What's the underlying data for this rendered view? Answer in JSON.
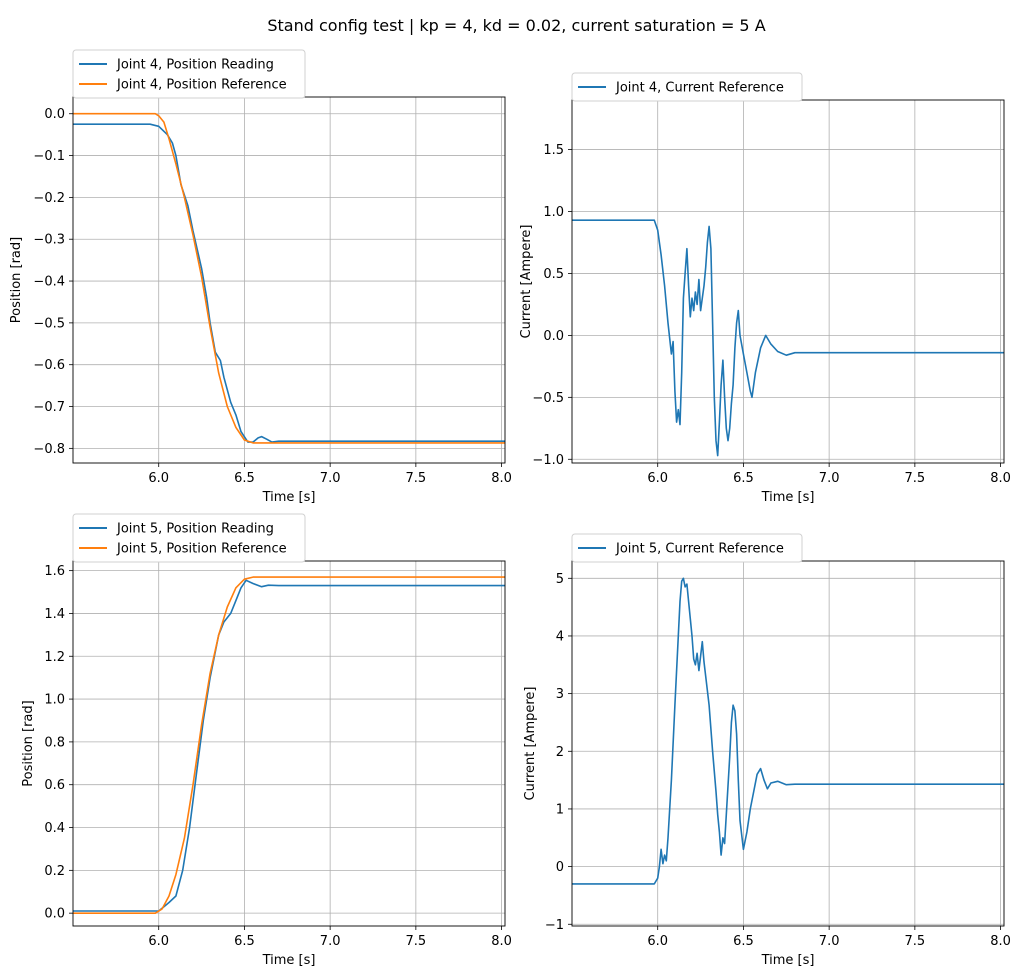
{
  "suptitle": "Stand config test | kp = 4, kd = 0.02, current saturation = 5 A",
  "colors": {
    "blue": "#1f77b4",
    "orange": "#ff7f0e",
    "grid": "#b0b0b0"
  },
  "chart_data": [
    {
      "type": "line",
      "xlabel": "Time [s]",
      "ylabel": "Position [rad]",
      "xlim": [
        5.5,
        8.02
      ],
      "ylim": [
        -0.835,
        0.04
      ],
      "xticks": [
        6.0,
        6.5,
        7.0,
        7.5,
        8.0
      ],
      "xtick_labels": [
        "6.0",
        "6.5",
        "7.0",
        "7.5",
        "8.0"
      ],
      "yticks": [
        0.0,
        -0.1,
        -0.2,
        -0.3,
        -0.4,
        -0.5,
        -0.6,
        -0.7,
        -0.8
      ],
      "ytick_labels": [
        "0.0",
        "−0.1",
        "−0.2",
        "−0.3",
        "−0.4",
        "−0.5",
        "−0.6",
        "−0.7",
        "−0.8"
      ],
      "grid": true,
      "legend_position": "above-left",
      "series": [
        {
          "name": "Joint 4, Position Reading",
          "color": "#1f77b4",
          "points": [
            [
              5.5,
              -0.025
            ],
            [
              5.95,
              -0.025
            ],
            [
              6.0,
              -0.03
            ],
            [
              6.05,
              -0.05
            ],
            [
              6.08,
              -0.07
            ],
            [
              6.1,
              -0.1
            ],
            [
              6.13,
              -0.17
            ],
            [
              6.17,
              -0.22
            ],
            [
              6.2,
              -0.28
            ],
            [
              6.25,
              -0.37
            ],
            [
              6.28,
              -0.44
            ],
            [
              6.3,
              -0.5
            ],
            [
              6.33,
              -0.57
            ],
            [
              6.36,
              -0.59
            ],
            [
              6.38,
              -0.63
            ],
            [
              6.42,
              -0.69
            ],
            [
              6.45,
              -0.72
            ],
            [
              6.48,
              -0.76
            ],
            [
              6.52,
              -0.785
            ],
            [
              6.55,
              -0.785
            ],
            [
              6.58,
              -0.775
            ],
            [
              6.6,
              -0.772
            ],
            [
              6.63,
              -0.778
            ],
            [
              6.66,
              -0.785
            ],
            [
              6.7,
              -0.783
            ],
            [
              8.02,
              -0.783
            ]
          ]
        },
        {
          "name": "Joint 4, Position Reference",
          "color": "#ff7f0e",
          "points": [
            [
              5.5,
              0.0
            ],
            [
              5.98,
              0.0
            ],
            [
              6.0,
              -0.005
            ],
            [
              6.03,
              -0.02
            ],
            [
              6.06,
              -0.06
            ],
            [
              6.1,
              -0.12
            ],
            [
              6.15,
              -0.2
            ],
            [
              6.2,
              -0.29
            ],
            [
              6.25,
              -0.39
            ],
            [
              6.3,
              -0.51
            ],
            [
              6.35,
              -0.62
            ],
            [
              6.4,
              -0.7
            ],
            [
              6.45,
              -0.75
            ],
            [
              6.5,
              -0.78
            ],
            [
              6.55,
              -0.787
            ],
            [
              6.6,
              -0.787
            ],
            [
              8.02,
              -0.787
            ]
          ]
        }
      ]
    },
    {
      "type": "line",
      "xlabel": "Time [s]",
      "ylabel": "Current [Ampere]",
      "xlim": [
        5.5,
        8.02
      ],
      "ylim": [
        -1.03,
        1.9
      ],
      "xticks": [
        6.0,
        6.5,
        7.0,
        7.5,
        8.0
      ],
      "xtick_labels": [
        "6.0",
        "6.5",
        "7.0",
        "7.5",
        "8.0"
      ],
      "yticks": [
        1.5,
        1.0,
        0.5,
        0.0,
        -0.5,
        -1.0
      ],
      "ytick_labels": [
        "1.5",
        "1.0",
        "0.5",
        "0.0",
        "−0.5",
        "−1.0"
      ],
      "grid": true,
      "legend_position": "above-left",
      "series": [
        {
          "name": "Joint 4, Current Reference",
          "color": "#1f77b4",
          "points": [
            [
              5.5,
              0.93
            ],
            [
              5.98,
              0.93
            ],
            [
              6.0,
              0.85
            ],
            [
              6.02,
              0.65
            ],
            [
              6.04,
              0.4
            ],
            [
              6.06,
              0.1
            ],
            [
              6.08,
              -0.15
            ],
            [
              6.09,
              -0.05
            ],
            [
              6.1,
              -0.45
            ],
            [
              6.11,
              -0.7
            ],
            [
              6.12,
              -0.6
            ],
            [
              6.13,
              -0.72
            ],
            [
              6.14,
              -0.3
            ],
            [
              6.15,
              0.3
            ],
            [
              6.16,
              0.5
            ],
            [
              6.17,
              0.7
            ],
            [
              6.18,
              0.4
            ],
            [
              6.19,
              0.15
            ],
            [
              6.2,
              0.3
            ],
            [
              6.21,
              0.2
            ],
            [
              6.22,
              0.35
            ],
            [
              6.23,
              0.25
            ],
            [
              6.24,
              0.45
            ],
            [
              6.25,
              0.2
            ],
            [
              6.26,
              0.3
            ],
            [
              6.27,
              0.4
            ],
            [
              6.28,
              0.55
            ],
            [
              6.29,
              0.75
            ],
            [
              6.3,
              0.88
            ],
            [
              6.31,
              0.7
            ],
            [
              6.32,
              0.1
            ],
            [
              6.33,
              -0.5
            ],
            [
              6.34,
              -0.85
            ],
            [
              6.35,
              -0.97
            ],
            [
              6.36,
              -0.7
            ],
            [
              6.37,
              -0.4
            ],
            [
              6.38,
              -0.2
            ],
            [
              6.39,
              -0.5
            ],
            [
              6.4,
              -0.75
            ],
            [
              6.41,
              -0.85
            ],
            [
              6.42,
              -0.75
            ],
            [
              6.43,
              -0.55
            ],
            [
              6.44,
              -0.4
            ],
            [
              6.45,
              -0.1
            ],
            [
              6.46,
              0.1
            ],
            [
              6.47,
              0.2
            ],
            [
              6.48,
              0.0
            ],
            [
              6.5,
              -0.15
            ],
            [
              6.52,
              -0.3
            ],
            [
              6.54,
              -0.45
            ],
            [
              6.55,
              -0.5
            ],
            [
              6.57,
              -0.3
            ],
            [
              6.6,
              -0.1
            ],
            [
              6.63,
              0.0
            ],
            [
              6.66,
              -0.07
            ],
            [
              6.7,
              -0.13
            ],
            [
              6.75,
              -0.16
            ],
            [
              6.8,
              -0.14
            ],
            [
              6.9,
              -0.14
            ],
            [
              7.0,
              -0.14
            ],
            [
              7.5,
              -0.14
            ],
            [
              8.02,
              -0.14
            ]
          ]
        }
      ]
    },
    {
      "type": "line",
      "xlabel": "Time [s]",
      "ylabel": "Position [rad]",
      "xlim": [
        5.5,
        8.02
      ],
      "ylim": [
        -0.06,
        1.645
      ],
      "xticks": [
        6.0,
        6.5,
        7.0,
        7.5,
        8.0
      ],
      "xtick_labels": [
        "6.0",
        "6.5",
        "7.0",
        "7.5",
        "8.0"
      ],
      "yticks": [
        0.0,
        0.2,
        0.4,
        0.6,
        0.8,
        1.0,
        1.2,
        1.4,
        1.6
      ],
      "ytick_labels": [
        "0.0",
        "0.2",
        "0.4",
        "0.6",
        "0.8",
        "1.0",
        "1.2",
        "1.4",
        "1.6"
      ],
      "grid": true,
      "legend_position": "above-left",
      "series": [
        {
          "name": "Joint 5, Position Reading",
          "color": "#1f77b4",
          "points": [
            [
              5.5,
              0.01
            ],
            [
              6.0,
              0.01
            ],
            [
              6.03,
              0.03
            ],
            [
              6.06,
              0.05
            ],
            [
              6.1,
              0.08
            ],
            [
              6.14,
              0.2
            ],
            [
              6.18,
              0.4
            ],
            [
              6.22,
              0.65
            ],
            [
              6.26,
              0.9
            ],
            [
              6.3,
              1.1
            ],
            [
              6.35,
              1.3
            ],
            [
              6.38,
              1.36
            ],
            [
              6.42,
              1.4
            ],
            [
              6.45,
              1.46
            ],
            [
              6.48,
              1.52
            ],
            [
              6.51,
              1.555
            ],
            [
              6.55,
              1.54
            ],
            [
              6.6,
              1.525
            ],
            [
              6.64,
              1.532
            ],
            [
              6.7,
              1.53
            ],
            [
              8.02,
              1.53
            ]
          ]
        },
        {
          "name": "Joint 5, Position Reference",
          "color": "#ff7f0e",
          "points": [
            [
              5.5,
              0.0
            ],
            [
              5.98,
              0.0
            ],
            [
              6.02,
              0.02
            ],
            [
              6.06,
              0.08
            ],
            [
              6.1,
              0.18
            ],
            [
              6.15,
              0.35
            ],
            [
              6.2,
              0.6
            ],
            [
              6.25,
              0.88
            ],
            [
              6.3,
              1.12
            ],
            [
              6.35,
              1.3
            ],
            [
              6.4,
              1.43
            ],
            [
              6.45,
              1.52
            ],
            [
              6.5,
              1.56
            ],
            [
              6.55,
              1.57
            ],
            [
              8.02,
              1.57
            ]
          ]
        }
      ]
    },
    {
      "type": "line",
      "xlabel": "Time [s]",
      "ylabel": "Current [Ampere]",
      "xlim": [
        5.5,
        8.02
      ],
      "ylim": [
        -1.03,
        5.3
      ],
      "xticks": [
        6.0,
        6.5,
        7.0,
        7.5,
        8.0
      ],
      "xtick_labels": [
        "6.0",
        "6.5",
        "7.0",
        "7.5",
        "8.0"
      ],
      "yticks": [
        5,
        4,
        3,
        2,
        1,
        0,
        -1
      ],
      "ytick_labels": [
        "5",
        "4",
        "3",
        "2",
        "1",
        "0",
        "−1"
      ],
      "grid": true,
      "legend_position": "above-left",
      "series": [
        {
          "name": "Joint 5, Current Reference",
          "color": "#1f77b4",
          "points": [
            [
              5.5,
              -0.3
            ],
            [
              5.98,
              -0.3
            ],
            [
              6.0,
              -0.2
            ],
            [
              6.01,
              0.0
            ],
            [
              6.02,
              0.3
            ],
            [
              6.03,
              0.05
            ],
            [
              6.04,
              0.2
            ],
            [
              6.05,
              0.1
            ],
            [
              6.06,
              0.5
            ],
            [
              6.08,
              1.5
            ],
            [
              6.1,
              2.8
            ],
            [
              6.12,
              4.0
            ],
            [
              6.13,
              4.6
            ],
            [
              6.14,
              4.95
            ],
            [
              6.15,
              5.0
            ],
            [
              6.16,
              4.85
            ],
            [
              6.17,
              4.9
            ],
            [
              6.18,
              4.6
            ],
            [
              6.19,
              4.3
            ],
            [
              6.2,
              4.0
            ],
            [
              6.21,
              3.6
            ],
            [
              6.22,
              3.5
            ],
            [
              6.23,
              3.7
            ],
            [
              6.24,
              3.4
            ],
            [
              6.25,
              3.65
            ],
            [
              6.26,
              3.9
            ],
            [
              6.27,
              3.55
            ],
            [
              6.28,
              3.3
            ],
            [
              6.3,
              2.8
            ],
            [
              6.32,
              2.0
            ],
            [
              6.34,
              1.3
            ],
            [
              6.35,
              0.9
            ],
            [
              6.36,
              0.6
            ],
            [
              6.37,
              0.2
            ],
            [
              6.38,
              0.5
            ],
            [
              6.39,
              0.4
            ],
            [
              6.4,
              0.9
            ],
            [
              6.42,
              1.9
            ],
            [
              6.43,
              2.5
            ],
            [
              6.44,
              2.8
            ],
            [
              6.45,
              2.7
            ],
            [
              6.46,
              2.3
            ],
            [
              6.47,
              1.5
            ],
            [
              6.48,
              0.8
            ],
            [
              6.5,
              0.3
            ],
            [
              6.52,
              0.6
            ],
            [
              6.54,
              1.0
            ],
            [
              6.56,
              1.3
            ],
            [
              6.58,
              1.6
            ],
            [
              6.6,
              1.7
            ],
            [
              6.62,
              1.5
            ],
            [
              6.64,
              1.35
            ],
            [
              6.66,
              1.45
            ],
            [
              6.7,
              1.48
            ],
            [
              6.75,
              1.42
            ],
            [
              6.8,
              1.43
            ],
            [
              7.0,
              1.43
            ],
            [
              7.5,
              1.43
            ],
            [
              8.02,
              1.43
            ]
          ]
        }
      ]
    }
  ]
}
